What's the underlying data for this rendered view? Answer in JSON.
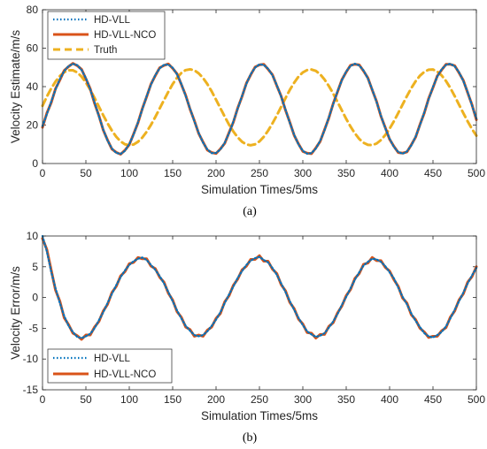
{
  "chart_data": [
    {
      "type": "line",
      "caption": "(a)",
      "xlabel": "Simulation Times/5ms",
      "ylabel": "Velocity Estimate/m/s",
      "xlim": [
        0,
        500
      ],
      "ylim": [
        0,
        80
      ],
      "xticks": [
        0,
        50,
        100,
        150,
        200,
        250,
        300,
        350,
        400,
        450,
        500
      ],
      "yticks": [
        0,
        20,
        40,
        60,
        80
      ],
      "legend": "top-left",
      "series": [
        {
          "name": "HD-VLL",
          "color": "#0072BD",
          "style": "dotted",
          "x": [
            0,
            5,
            10,
            15,
            20,
            25,
            30,
            35,
            40,
            45,
            50,
            55,
            60,
            65,
            70,
            75,
            80,
            85,
            90,
            95,
            100,
            105,
            110,
            115,
            120,
            125,
            130,
            135,
            140,
            145,
            150,
            155,
            160,
            165,
            170,
            175,
            180,
            185,
            190,
            195,
            200,
            205,
            210,
            215,
            220,
            225,
            230,
            235,
            240,
            245,
            250,
            255,
            260,
            265,
            270,
            275,
            280,
            285,
            290,
            295,
            300,
            305,
            310,
            315,
            320,
            325,
            330,
            335,
            340,
            345,
            350,
            355,
            360,
            365,
            370,
            375,
            380,
            385,
            390,
            395,
            400,
            405,
            410,
            415,
            420,
            425,
            430,
            435,
            440,
            445,
            450,
            455,
            460,
            465,
            470,
            475,
            480,
            485,
            490,
            495,
            500
          ],
          "y": [
            19.5,
            25.6,
            32.1,
            38.5,
            43.9,
            48.1,
            50.7,
            51.8,
            51.2,
            48.7,
            44.4,
            38.6,
            31.7,
            24.6,
            17.7,
            11.9,
            7.8,
            5.5,
            5,
            6.6,
            10.1,
            15.1,
            21.4,
            28.2,
            35,
            41,
            46,
            49.5,
            51.3,
            51.5,
            49.8,
            46.4,
            41.4,
            35.2,
            28.6,
            22,
            15.9,
            10.9,
            7.3,
            5.4,
            5.5,
            7.3,
            10.8,
            15.8,
            21.9,
            28.6,
            35.2,
            41.5,
            46.5,
            49.9,
            51.6,
            51.3,
            49.3,
            45.9,
            40.8,
            34.8,
            28.1,
            21.2,
            15,
            9.9,
            6.6,
            5.1,
            5.4,
            7.8,
            11.8,
            17.3,
            24,
            30.9,
            37.6,
            43.3,
            47.9,
            50.8,
            51.9,
            51,
            48.4,
            44.2,
            38.5,
            32,
            24.9,
            18.4,
            12.9,
            8.6,
            6,
            5.1,
            6.3,
            9.4,
            14,
            20,
            26.6,
            33.5,
            39.8,
            45.3,
            49,
            51.3,
            51.9,
            50.6,
            47.5,
            42.9,
            37.1,
            30.2,
            23.4
          ]
        },
        {
          "name": "HD-VLL-NCO",
          "color": "#D95319",
          "style": "solid",
          "x": [
            0,
            5,
            10,
            15,
            20,
            25,
            30,
            35,
            40,
            45,
            50,
            55,
            60,
            65,
            70,
            75,
            80,
            85,
            90,
            95,
            100,
            105,
            110,
            115,
            120,
            125,
            130,
            135,
            140,
            145,
            150,
            155,
            160,
            165,
            170,
            175,
            180,
            185,
            190,
            195,
            200,
            205,
            210,
            215,
            220,
            225,
            230,
            235,
            240,
            245,
            250,
            255,
            260,
            265,
            270,
            275,
            280,
            285,
            290,
            295,
            300,
            305,
            310,
            315,
            320,
            325,
            330,
            335,
            340,
            345,
            350,
            355,
            360,
            365,
            370,
            375,
            380,
            385,
            390,
            395,
            400,
            405,
            410,
            415,
            420,
            425,
            430,
            435,
            440,
            445,
            450,
            455,
            460,
            465,
            470,
            475,
            480,
            485,
            490,
            495,
            500
          ],
          "y": [
            18.8,
            26.2,
            31.6,
            38.9,
            43.4,
            48.4,
            50.4,
            52.1,
            50.9,
            49,
            44.1,
            38.9,
            31.3,
            24.9,
            17.4,
            12.2,
            7.5,
            5.8,
            4.8,
            6.9,
            9.8,
            15.4,
            21.1,
            28.5,
            34.7,
            41.3,
            45.7,
            49.8,
            51,
            51.8,
            49.5,
            46.7,
            41.1,
            35.5,
            28.3,
            22.3,
            15.6,
            11.2,
            7,
            5.7,
            5.2,
            7.6,
            10.5,
            16.1,
            21.6,
            28.9,
            34.9,
            41.8,
            46.2,
            50.2,
            51.3,
            51.6,
            49,
            46.2,
            40.5,
            35.1,
            27.8,
            21.5,
            14.7,
            10.2,
            6.3,
            5.4,
            5.1,
            8.1,
            11.5,
            17.6,
            23.7,
            31.2,
            37.3,
            43.6,
            47.6,
            51.1,
            51.6,
            51.3,
            48.1,
            44.5,
            38.2,
            32.3,
            24.6,
            18.7,
            12.6,
            8.9,
            5.7,
            5.4,
            6,
            9.7,
            13.7,
            20.3,
            26.3,
            33.8,
            39.5,
            45.6,
            48.7,
            51.6,
            51.6,
            50.9,
            47.2,
            43.2,
            36.8,
            30.5,
            22.8
          ]
        },
        {
          "name": "Truth",
          "color": "#EDB120",
          "style": "dashed",
          "x": [
            0,
            5,
            10,
            15,
            20,
            25,
            30,
            35,
            40,
            45,
            50,
            55,
            60,
            65,
            70,
            75,
            80,
            85,
            90,
            95,
            100,
            105,
            110,
            115,
            120,
            125,
            130,
            135,
            140,
            145,
            150,
            155,
            160,
            165,
            170,
            175,
            180,
            185,
            190,
            195,
            200,
            205,
            210,
            215,
            220,
            225,
            230,
            235,
            240,
            245,
            250,
            255,
            260,
            265,
            270,
            275,
            280,
            285,
            290,
            295,
            300,
            305,
            310,
            315,
            320,
            325,
            330,
            335,
            340,
            345,
            350,
            355,
            360,
            365,
            370,
            375,
            380,
            385,
            390,
            395,
            400,
            405,
            410,
            415,
            420,
            425,
            430,
            435,
            440,
            445,
            450,
            455,
            460,
            465,
            470,
            475,
            480,
            485,
            490,
            495,
            500
          ],
          "y": [
            30,
            34.8,
            39,
            42.6,
            45.5,
            47.5,
            48.5,
            48.5,
            47.4,
            45.2,
            42.1,
            38.4,
            34.1,
            29.6,
            25.1,
            20.9,
            17.1,
            13.9,
            11.5,
            10,
            9.5,
            9.9,
            11.3,
            13.5,
            16.5,
            20.1,
            24.2,
            28.6,
            33,
            37.3,
            41.3,
            44.6,
            47.1,
            48.6,
            49,
            48.5,
            46.9,
            44.5,
            41.3,
            37.5,
            33.2,
            28.8,
            24.4,
            20.2,
            16.6,
            13.6,
            11.3,
            9.9,
            9.5,
            10,
            11.5,
            13.9,
            17.1,
            20.9,
            25,
            29.5,
            34,
            38.3,
            42,
            45.2,
            47.4,
            48.6,
            48.9,
            48.2,
            46.4,
            43.7,
            40.3,
            36.4,
            32,
            27.6,
            23.2,
            19.2,
            15.7,
            12.8,
            10.8,
            9.7,
            9.6,
            10.4,
            12.2,
            14.8,
            18.1,
            22,
            26.3,
            30.7,
            35.1,
            39.2,
            42.8,
            45.7,
            47.7,
            48.8,
            48.9,
            47.8,
            45.8,
            42.9,
            39.3,
            35.1,
            30.6,
            26.2,
            21.9,
            17.9,
            14.5
          ]
        }
      ]
    },
    {
      "type": "line",
      "caption": "(b)",
      "xlabel": "Simulation Times/5ms",
      "ylabel": "Velocity Error/m/s",
      "xlim": [
        0,
        500
      ],
      "ylim": [
        -15,
        10
      ],
      "xticks": [
        0,
        50,
        100,
        150,
        200,
        250,
        300,
        350,
        400,
        450,
        500
      ],
      "yticks": [
        -15,
        -10,
        -5,
        0,
        5,
        10
      ],
      "legend": "bottom-left",
      "series": [
        {
          "name": "HD-VLL",
          "color": "#0072BD",
          "style": "dotted",
          "x": [
            0,
            5,
            10,
            15,
            20,
            25,
            30,
            35,
            40,
            45,
            50,
            55,
            60,
            65,
            70,
            75,
            80,
            85,
            90,
            95,
            100,
            105,
            110,
            115,
            120,
            125,
            130,
            135,
            140,
            145,
            150,
            155,
            160,
            165,
            170,
            175,
            180,
            185,
            190,
            195,
            200,
            205,
            210,
            215,
            220,
            225,
            230,
            235,
            240,
            245,
            250,
            255,
            260,
            265,
            270,
            275,
            280,
            285,
            290,
            295,
            300,
            305,
            310,
            315,
            320,
            325,
            330,
            335,
            340,
            345,
            350,
            355,
            360,
            365,
            370,
            375,
            380,
            385,
            390,
            395,
            400,
            405,
            410,
            415,
            420,
            425,
            430,
            435,
            440,
            445,
            450,
            455,
            460,
            465,
            470,
            475,
            480,
            485,
            490,
            495,
            500
          ],
          "y": [
            10,
            7.5,
            4.2,
            1.5,
            -0.9,
            -3,
            -4.6,
            -5.6,
            -6.4,
            -6.6,
            -6.3,
            -5.9,
            -5,
            -3.7,
            -2.4,
            -0.9,
            0.6,
            2,
            3.3,
            4.4,
            5.3,
            5.9,
            6.3,
            6.5,
            6.1,
            5.3,
            4.5,
            3.5,
            2.3,
            0.9,
            -0.6,
            -2.1,
            -3.4,
            -4.6,
            -5.4,
            -6.1,
            -6.3,
            -6.1,
            -5.5,
            -4.6,
            -3.6,
            -2.4,
            -0.9,
            0.5,
            1.8,
            3.2,
            4.3,
            5.3,
            6,
            6.4,
            6.6,
            6.1,
            5.7,
            4.8,
            3.7,
            2.3,
            0.9,
            -0.6,
            -2,
            -3.3,
            -4.5,
            -5.5,
            -6,
            -6.4,
            -6.2,
            -5.8,
            -4.9,
            -3.9,
            -2.7,
            -1.2,
            0.1,
            1.5,
            2.9,
            4.1,
            5.2,
            5.8,
            6.3,
            6.2,
            5.8,
            5.1,
            4.1,
            3.1,
            1.6,
            0.1,
            -1.1,
            -2.6,
            -3.8,
            -4.8,
            -5.8,
            -6.3,
            -6.5,
            -6.1,
            -5.6,
            -4.7,
            -3.4,
            -2,
            -0.6,
            0.8,
            2.3,
            3.6,
            4.8
          ]
        },
        {
          "name": "HD-VLL-NCO",
          "color": "#D95319",
          "style": "solid",
          "x": [
            0,
            5,
            10,
            15,
            20,
            25,
            30,
            35,
            40,
            45,
            50,
            55,
            60,
            65,
            70,
            75,
            80,
            85,
            90,
            95,
            100,
            105,
            110,
            115,
            120,
            125,
            130,
            135,
            140,
            145,
            150,
            155,
            160,
            165,
            170,
            175,
            180,
            185,
            190,
            195,
            200,
            205,
            210,
            215,
            220,
            225,
            230,
            235,
            240,
            245,
            250,
            255,
            260,
            265,
            270,
            275,
            280,
            285,
            290,
            295,
            300,
            305,
            310,
            315,
            320,
            325,
            330,
            335,
            340,
            345,
            350,
            355,
            360,
            365,
            370,
            375,
            380,
            385,
            390,
            395,
            400,
            405,
            410,
            415,
            420,
            425,
            430,
            435,
            440,
            445,
            450,
            455,
            460,
            465,
            470,
            475,
            480,
            485,
            490,
            495,
            500
          ],
          "y": [
            9.6,
            7.8,
            4.5,
            1.2,
            -0.6,
            -3.3,
            -4.4,
            -5.8,
            -6.2,
            -6.8,
            -6.1,
            -6.1,
            -4.8,
            -3.9,
            -2.2,
            -1.1,
            0.8,
            1.8,
            3.5,
            4.2,
            5.5,
            5.7,
            6.5,
            6.3,
            6.3,
            5.1,
            4.7,
            3.3,
            2.5,
            0.7,
            -0.4,
            -2.3,
            -3.2,
            -4.8,
            -5.2,
            -6.3,
            -6.1,
            -6.3,
            -5.3,
            -4.8,
            -3.4,
            -2.6,
            -0.7,
            0.3,
            2,
            3,
            4.5,
            5.1,
            6.2,
            6.2,
            6.8,
            5.9,
            5.9,
            4.6,
            3.9,
            2.1,
            1.1,
            -0.8,
            -1.8,
            -3.5,
            -4.3,
            -5.7,
            -5.8,
            -6.6,
            -6,
            -6,
            -4.7,
            -4.1,
            -2.5,
            -1.4,
            0.3,
            1.3,
            3.1,
            3.9,
            5.4,
            5.6,
            6.5,
            6,
            6,
            4.9,
            4.3,
            2.9,
            1.8,
            -0.1,
            -0.9,
            -2.8,
            -3.6,
            -5,
            -5.6,
            -6.5,
            -6.3,
            -6.3,
            -5.4,
            -4.9,
            -3.2,
            -2.2,
            -0.4,
            0.6,
            2.5,
            3.4,
            5
          ]
        }
      ]
    }
  ]
}
